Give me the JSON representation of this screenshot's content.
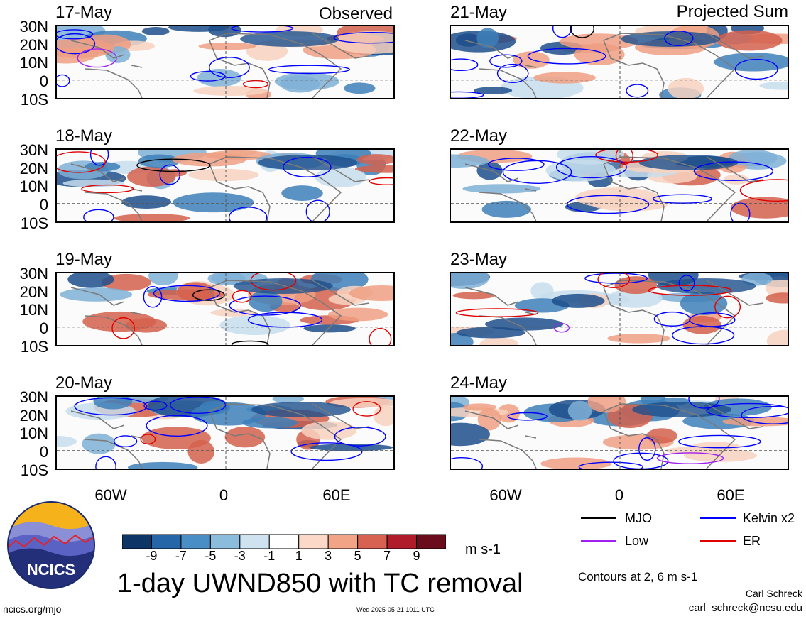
{
  "columns": {
    "left_header": "Observed",
    "right_header": "Projected Sum"
  },
  "panels": [
    {
      "date": "17-May"
    },
    {
      "date": "18-May"
    },
    {
      "date": "19-May"
    },
    {
      "date": "20-May"
    },
    {
      "date": "21-May"
    },
    {
      "date": "22-May"
    },
    {
      "date": "23-May"
    },
    {
      "date": "24-May"
    }
  ],
  "lat_labels": [
    "30N",
    "20N",
    "10N",
    "0",
    "10S"
  ],
  "lon_labels": [
    "60W",
    "0",
    "60E"
  ],
  "colorbar": {
    "ticks": [
      "-9",
      "-7",
      "-5",
      "-3",
      "-1",
      "1",
      "3",
      "5",
      "7",
      "9"
    ],
    "colors": [
      "#0d3566",
      "#2466a8",
      "#4a8ec6",
      "#8cbcdc",
      "#cfe2ef",
      "#ffffff",
      "#fbd8c8",
      "#f2a486",
      "#d86252",
      "#b01c2a",
      "#6a0c1c"
    ],
    "units": "m s-1"
  },
  "legend": [
    {
      "label": "MJO",
      "color": "#000000"
    },
    {
      "label": "Kelvin x2",
      "color": "#0000ff"
    },
    {
      "label": "Low",
      "color": "#a020f0"
    },
    {
      "label": "ER",
      "color": "#e00000"
    }
  ],
  "title": "1-day UWND850 with TC removal",
  "contours_note": "Contours at 2, 6 m s-1",
  "author": "Carl Schreck",
  "email": "carl_schreck@ncsu.edu",
  "url": "ncics.org/mjo",
  "timestamp": "Wed 2025-05-21 1011 UTC",
  "logo_text": "NCICS"
}
